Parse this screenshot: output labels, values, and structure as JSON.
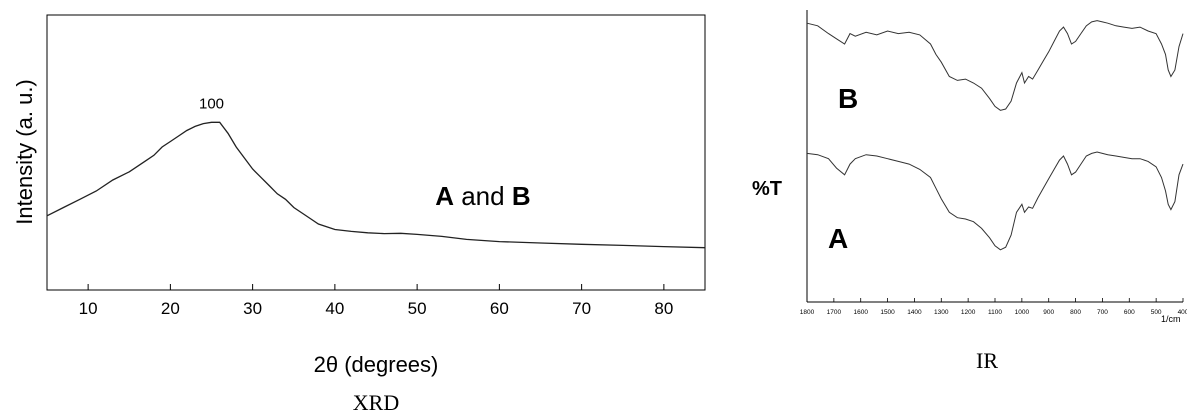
{
  "chart_data": [
    {
      "type": "line",
      "caption": "XRD",
      "xlabel": "2θ (degrees)",
      "ylabel": "Intensity (a. u.)",
      "xlim": [
        5,
        85
      ],
      "ylim": [
        0,
        100
      ],
      "xticks": [
        10,
        20,
        30,
        40,
        50,
        60,
        70,
        80
      ],
      "grid": false,
      "annotations": [
        {
          "text": "100",
          "x": 25,
          "y": 66
        },
        {
          "label_a": "A",
          "label_and": " and ",
          "label_b": "B",
          "x": 58,
          "y": 31
        }
      ],
      "series": [
        {
          "x": [
            5,
            7,
            9,
            11,
            13,
            15,
            16,
            17,
            18,
            19,
            20,
            21,
            22,
            23,
            24,
            25,
            26,
            27,
            28,
            29,
            30,
            31,
            32,
            33,
            34,
            35,
            36,
            37,
            38,
            40,
            42,
            44,
            46,
            48,
            50,
            53,
            56,
            60,
            65,
            70,
            75,
            80,
            85
          ],
          "y": [
            27,
            30,
            33,
            36,
            40,
            43,
            45,
            47,
            49,
            52,
            54,
            56,
            58,
            59.5,
            60.5,
            61,
            61,
            57,
            52,
            48,
            44,
            41,
            38,
            35,
            33,
            30,
            28,
            26,
            24,
            22,
            21.3,
            20.8,
            20.5,
            20.6,
            20.2,
            19.5,
            18.4,
            17.6,
            17.1,
            16.6,
            16.2,
            15.8,
            15.4
          ]
        }
      ]
    },
    {
      "type": "line",
      "caption": "IR",
      "ylabel": "%T",
      "xunit": "1/cm",
      "xlim": [
        1800,
        400
      ],
      "xticks": [
        1800,
        1700,
        1600,
        1500,
        1400,
        1300,
        1200,
        1100,
        1000,
        900,
        800,
        700,
        600,
        500,
        400
      ],
      "grid": false,
      "series": [
        {
          "name": "B",
          "x": [
            1800,
            1760,
            1720,
            1690,
            1660,
            1640,
            1620,
            1580,
            1540,
            1500,
            1460,
            1420,
            1380,
            1340,
            1320,
            1300,
            1270,
            1240,
            1210,
            1180,
            1150,
            1120,
            1100,
            1080,
            1060,
            1040,
            1020,
            1000,
            990,
            975,
            960,
            940,
            920,
            900,
            880,
            860,
            845,
            830,
            815,
            800,
            780,
            760,
            740,
            720,
            700,
            680,
            650,
            620,
            590,
            560,
            530,
            500,
            480,
            465,
            455,
            445,
            430,
            415,
            400
          ],
          "y": [
            96,
            94,
            88,
            84,
            80,
            88,
            86,
            89,
            87,
            90,
            88,
            89,
            87,
            80,
            72,
            66,
            55,
            52,
            53,
            50,
            46,
            38,
            32,
            29,
            30,
            36,
            50,
            58,
            50,
            55,
            53,
            60,
            67,
            74,
            82,
            90,
            93,
            88,
            80,
            82,
            88,
            94,
            97,
            98,
            97,
            96,
            94,
            93,
            92,
            93,
            90,
            88,
            80,
            72,
            60,
            55,
            60,
            78,
            88
          ]
        },
        {
          "name": "A",
          "x": [
            1800,
            1760,
            1720,
            1690,
            1660,
            1640,
            1620,
            1580,
            1540,
            1500,
            1460,
            1420,
            1380,
            1340,
            1320,
            1300,
            1270,
            1240,
            1210,
            1180,
            1150,
            1120,
            1100,
            1080,
            1060,
            1040,
            1020,
            1000,
            990,
            975,
            960,
            940,
            920,
            900,
            880,
            860,
            845,
            830,
            815,
            800,
            780,
            760,
            740,
            720,
            700,
            680,
            650,
            620,
            590,
            560,
            530,
            500,
            480,
            465,
            455,
            445,
            430,
            415,
            400
          ],
          "y": [
            96,
            95,
            92,
            85,
            80,
            88,
            92,
            95,
            94,
            92,
            90,
            88,
            84,
            78,
            70,
            62,
            52,
            48,
            47,
            45,
            40,
            33,
            27,
            24,
            26,
            35,
            52,
            58,
            52,
            56,
            55,
            63,
            70,
            77,
            84,
            91,
            94,
            88,
            80,
            82,
            88,
            94,
            96,
            97,
            96,
            95,
            94,
            93,
            92,
            92,
            90,
            86,
            78,
            68,
            58,
            54,
            60,
            80,
            88
          ]
        }
      ],
      "labels": {
        "A": "A",
        "B": "B"
      }
    }
  ]
}
